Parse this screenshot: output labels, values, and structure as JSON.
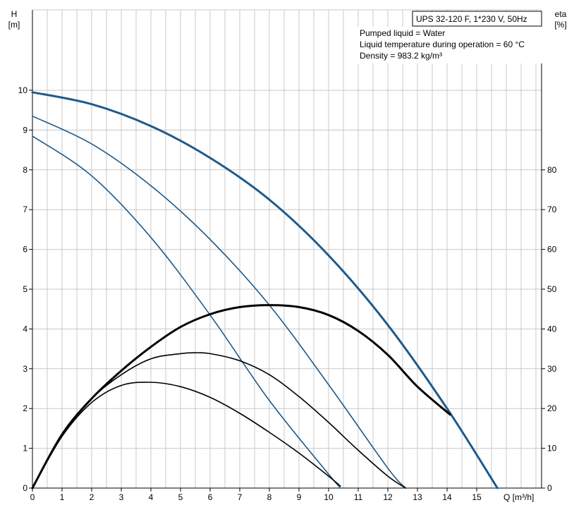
{
  "chart_data": {
    "type": "line",
    "title": "UPS 32-120 F, 1*230 V, 50Hz",
    "info_lines": [
      "Pumped liquid = Water",
      "Liquid temperature during operation = 60 °C",
      "Density = 983.2 kg/m³"
    ],
    "xlabel": "Q [m³/h]",
    "ylabel_left": "H",
    "ylabel_left_unit": "[m]",
    "ylabel_right": "eta",
    "ylabel_right_unit": "[%]",
    "xlim": [
      0,
      17
    ],
    "ylim_left": [
      0,
      12
    ],
    "ylim_right": [
      0,
      120
    ],
    "x_ticks": [
      "0",
      "1",
      "2",
      "3",
      "4",
      "5",
      "6",
      "7",
      "8",
      "9",
      "10",
      "11",
      "12",
      "13",
      "14",
      "15"
    ],
    "y_ticks_left": [
      "0",
      "1",
      "2",
      "3",
      "4",
      "5",
      "6",
      "7",
      "8",
      "9",
      "10"
    ],
    "y_ticks_right": [
      "0",
      "10",
      "20",
      "30",
      "40",
      "50",
      "60",
      "70",
      "80"
    ],
    "grid": true,
    "colors": {
      "head": "#1f5a8a",
      "efficiency": "#000000",
      "grid": "#c8c8c8"
    },
    "series": [
      {
        "kind": "head",
        "emphasis": true,
        "x": [
          0,
          2,
          4,
          6,
          8,
          10,
          12,
          14,
          15.7
        ],
        "y": [
          9.95,
          9.65,
          9.1,
          8.3,
          7.25,
          5.85,
          4.1,
          2.0,
          0.0
        ]
      },
      {
        "kind": "head",
        "emphasis": false,
        "x": [
          0,
          2,
          4,
          6,
          8,
          10,
          12,
          12.6
        ],
        "y": [
          9.35,
          8.65,
          7.6,
          6.25,
          4.6,
          2.6,
          0.5,
          0.0
        ]
      },
      {
        "kind": "head",
        "emphasis": false,
        "x": [
          0,
          2,
          4,
          6,
          8,
          10,
          10.4
        ],
        "y": [
          8.85,
          7.85,
          6.3,
          4.35,
          2.2,
          0.35,
          0.0
        ]
      },
      {
        "kind": "efficiency",
        "emphasis": true,
        "x": [
          0,
          1,
          2,
          3,
          4,
          5,
          6,
          7,
          8,
          9,
          10,
          11,
          12,
          13,
          14.1
        ],
        "y": [
          0,
          13.5,
          22.5,
          29.5,
          35.5,
          40.5,
          43.7,
          45.5,
          46.0,
          45.5,
          43.5,
          39.5,
          33.5,
          25.5,
          18.5
        ]
      },
      {
        "kind": "efficiency",
        "emphasis": false,
        "x": [
          0,
          1,
          2,
          3,
          4,
          5,
          5.5,
          6,
          7,
          8,
          9,
          10,
          11,
          12,
          12.6
        ],
        "y": [
          0,
          13.5,
          22.5,
          28.5,
          32.5,
          33.8,
          34.0,
          33.8,
          32.0,
          28.5,
          23.0,
          16.5,
          9.5,
          3.0,
          0.0
        ]
      },
      {
        "kind": "efficiency",
        "emphasis": false,
        "x": [
          0,
          1,
          2,
          3,
          4,
          5,
          6,
          7,
          8,
          9,
          10,
          10.4
        ],
        "y": [
          0,
          13.0,
          21.5,
          25.8,
          26.6,
          25.5,
          22.8,
          18.8,
          14.0,
          8.8,
          3.0,
          0.5
        ]
      }
    ]
  }
}
